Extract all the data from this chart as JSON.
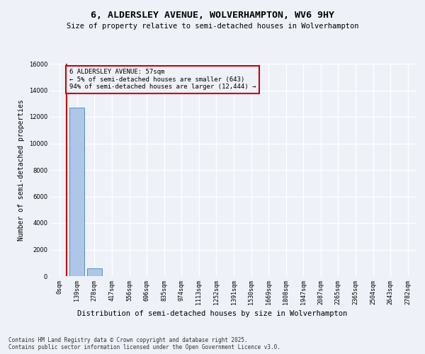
{
  "title": "6, ALDERSLEY AVENUE, WOLVERHAMPTON, WV6 9HY",
  "subtitle": "Size of property relative to semi-detached houses in Wolverhampton",
  "xlabel": "Distribution of semi-detached houses by size in Wolverhampton",
  "ylabel": "Number of semi-detached properties",
  "annotation_title": "6 ALDERSLEY AVENUE: 57sqm",
  "annotation_line2": "← 5% of semi-detached houses are smaller (643)",
  "annotation_line3": "94% of semi-detached houses are larger (12,444) →",
  "footnote1": "Contains HM Land Registry data © Crown copyright and database right 2025.",
  "footnote2": "Contains public sector information licensed under the Open Government Licence v3.0.",
  "bin_labels": [
    "0sqm",
    "139sqm",
    "278sqm",
    "417sqm",
    "556sqm",
    "696sqm",
    "835sqm",
    "974sqm",
    "1113sqm",
    "1252sqm",
    "1391sqm",
    "1530sqm",
    "1669sqm",
    "1808sqm",
    "1947sqm",
    "2087sqm",
    "2265sqm",
    "2365sqm",
    "2504sqm",
    "2643sqm",
    "2782sqm"
  ],
  "bar_values": [
    0,
    12700,
    600,
    0,
    0,
    0,
    0,
    0,
    0,
    0,
    0,
    0,
    0,
    0,
    0,
    0,
    0,
    0,
    0,
    0,
    0
  ],
  "bar_color": "#aec6e8",
  "bar_edge_color": "#5a8fc0",
  "property_line_x": 0.41,
  "ylim": [
    0,
    16000
  ],
  "yticks": [
    0,
    2000,
    4000,
    6000,
    8000,
    10000,
    12000,
    14000,
    16000
  ],
  "background_color": "#eef2f8",
  "grid_color": "#ffffff",
  "annotation_box_color": "#cc0000",
  "property_line_color": "#cc0000"
}
